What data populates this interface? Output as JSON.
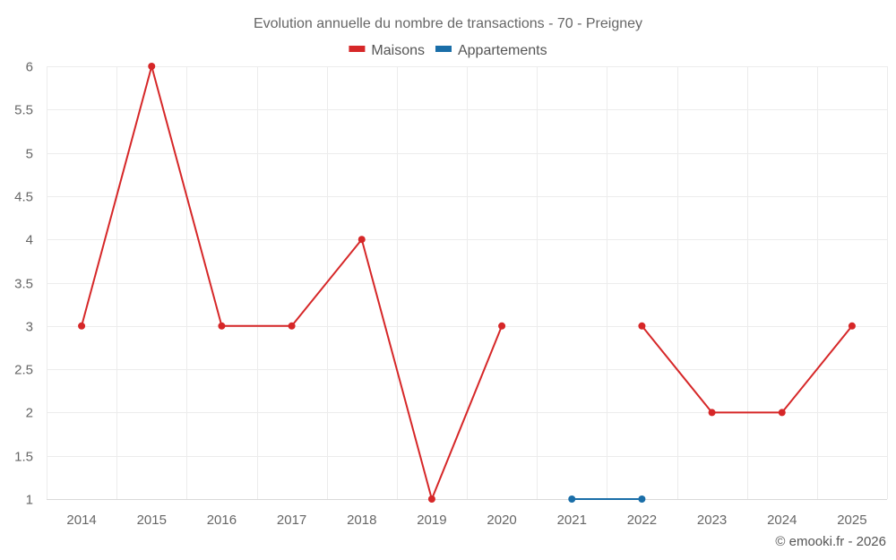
{
  "chart_data": {
    "type": "line",
    "title": "Evolution annuelle du nombre de transactions - 70 - Preigney",
    "categories": [
      "2014",
      "2015",
      "2016",
      "2017",
      "2018",
      "2019",
      "2020",
      "2021",
      "2022",
      "2023",
      "2024",
      "2025"
    ],
    "series": [
      {
        "name": "Maisons",
        "color": "#d62728",
        "values": [
          3,
          6,
          3,
          3,
          4,
          1,
          3,
          null,
          3,
          2,
          2,
          3
        ]
      },
      {
        "name": "Appartements",
        "color": "#1a6ea8",
        "values": [
          null,
          null,
          null,
          null,
          null,
          null,
          null,
          1,
          1,
          null,
          null,
          null
        ]
      }
    ],
    "yticks": [
      "1",
      "1.5",
      "2",
      "2.5",
      "3",
      "3.5",
      "4",
      "4.5",
      "5",
      "5.5",
      "6"
    ],
    "ylim": [
      1,
      6
    ],
    "xlabel": "",
    "ylabel": "",
    "legend_position": "top-center",
    "grid": true
  },
  "credit": "© emooki.fr - 2026"
}
